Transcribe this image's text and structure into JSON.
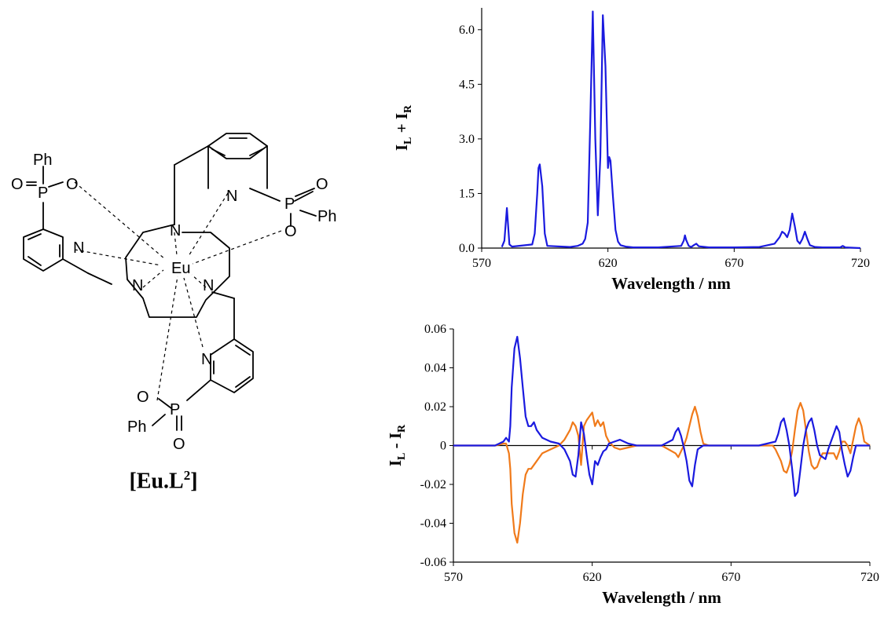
{
  "structure": {
    "atoms": {
      "metal": "Eu",
      "nitrogen": "N",
      "phosphorus": "P",
      "oxygen": "O",
      "phenyl": "Ph"
    },
    "caption_main": "[Eu.L",
    "caption_sup": "2",
    "caption_end": "]"
  },
  "chart_data": [
    {
      "type": "line",
      "title": "",
      "xlabel": "Wavelength / nm",
      "ylabel_main": "I",
      "ylabel_sub1": "L",
      "ylabel_mid": " + I",
      "ylabel_sub2": "R",
      "xlim": [
        570,
        720
      ],
      "ylim": [
        0,
        6.6
      ],
      "xticks": [
        570,
        620,
        670,
        720
      ],
      "yticks": [
        0.0,
        1.5,
        3.0,
        4.5,
        6.0
      ],
      "ytick_labels": [
        "0.0",
        "1.5",
        "3.0",
        "4.5",
        "6.0"
      ],
      "series": [
        {
          "color": "#1a1adf",
          "x": [
            578,
            579,
            580,
            580.5,
            581,
            582,
            590,
            591,
            592,
            592.5,
            593,
            594,
            595,
            596,
            605,
            608,
            610,
            611,
            612,
            613,
            614,
            615,
            616,
            617,
            618,
            619,
            620,
            620.5,
            621,
            622,
            623,
            624,
            625,
            627,
            630,
            640,
            649,
            650,
            650.5,
            651,
            652,
            653,
            654,
            655,
            656,
            660,
            670,
            680,
            686,
            688,
            689,
            690,
            691,
            692,
            693,
            694,
            695,
            696,
            697,
            698,
            699,
            700,
            702,
            705,
            712,
            713,
            714,
            720
          ],
          "y": [
            0.03,
            0.2,
            1.1,
            0.6,
            0.1,
            0.04,
            0.1,
            0.4,
            1.5,
            2.2,
            2.3,
            1.7,
            0.4,
            0.06,
            0.03,
            0.06,
            0.12,
            0.25,
            0.7,
            3.5,
            6.5,
            3.0,
            0.9,
            2.5,
            6.4,
            5.0,
            2.2,
            2.5,
            2.4,
            1.4,
            0.5,
            0.18,
            0.08,
            0.04,
            0.02,
            0.02,
            0.06,
            0.2,
            0.35,
            0.22,
            0.06,
            0.03,
            0.08,
            0.12,
            0.05,
            0.02,
            0.02,
            0.03,
            0.12,
            0.3,
            0.45,
            0.4,
            0.3,
            0.5,
            0.95,
            0.6,
            0.2,
            0.12,
            0.25,
            0.45,
            0.25,
            0.08,
            0.03,
            0.02,
            0.02,
            0.06,
            0.02,
            0.0
          ]
        }
      ]
    },
    {
      "type": "line",
      "title": "",
      "xlabel": "Wavelength / nm",
      "ylabel_main": "I",
      "ylabel_sub1": "L",
      "ylabel_mid": " - I",
      "ylabel_sub2": "R",
      "xlim": [
        570,
        720
      ],
      "ylim": [
        -0.06,
        0.06
      ],
      "xticks": [
        570,
        620,
        670,
        720
      ],
      "yticks": [
        -0.06,
        -0.04,
        -0.02,
        0,
        0.02,
        0.04,
        0.06
      ],
      "ytick_labels": [
        "-0.06",
        "-0.04",
        "-0.02",
        "0",
        "0.02",
        "0.04",
        "0.06"
      ],
      "series": [
        {
          "color": "#f07a1a",
          "x": [
            570,
            585,
            588,
            589,
            590,
            590.5,
            591,
            592,
            593,
            594,
            595,
            596,
            597,
            598,
            600,
            602,
            605,
            608,
            610,
            612,
            613,
            614,
            615,
            616,
            617,
            618,
            619,
            620,
            621,
            622,
            623,
            624,
            625,
            626,
            628,
            630,
            633,
            636,
            640,
            645,
            650,
            651,
            652,
            653,
            654,
            655,
            656,
            657,
            658,
            659,
            660,
            662,
            665,
            670,
            680,
            685,
            686,
            688,
            689,
            690,
            691,
            692,
            693,
            694,
            695,
            696,
            697,
            698,
            699,
            700,
            701,
            702,
            703,
            705,
            707,
            708,
            709,
            710,
            711,
            712,
            713,
            714,
            715,
            716,
            717,
            718,
            720
          ],
          "y": [
            0,
            0,
            0.001,
            0.001,
            -0.004,
            -0.012,
            -0.03,
            -0.045,
            -0.05,
            -0.04,
            -0.025,
            -0.015,
            -0.012,
            -0.012,
            -0.008,
            -0.004,
            -0.002,
            0,
            0.003,
            0.008,
            0.012,
            0.01,
            0.005,
            -0.01,
            0.01,
            0.013,
            0.015,
            0.017,
            0.01,
            0.013,
            0.01,
            0.012,
            0.005,
            0.002,
            -0.001,
            -0.002,
            -0.001,
            0,
            0,
            0,
            -0.004,
            -0.006,
            -0.003,
            0.0,
            0.004,
            0.01,
            0.016,
            0.02,
            0.015,
            0.007,
            0.001,
            0,
            0,
            0,
            0,
            0,
            -0.002,
            -0.008,
            -0.013,
            -0.014,
            -0.01,
            -0.003,
            0.008,
            0.018,
            0.022,
            0.018,
            0.008,
            -0.003,
            -0.01,
            -0.012,
            -0.011,
            -0.007,
            -0.004,
            -0.004,
            -0.004,
            -0.007,
            -0.003,
            0.002,
            0.002,
            0.0,
            -0.004,
            0.003,
            0.01,
            0.014,
            0.01,
            0.002,
            0
          ]
        },
        {
          "color": "#1a1adf",
          "x": [
            570,
            585,
            588,
            589,
            590,
            590.5,
            591,
            592,
            593,
            594,
            595,
            596,
            597,
            598,
            599,
            600,
            602,
            605,
            608,
            610,
            612,
            613,
            614,
            615,
            616,
            617,
            618,
            619,
            620,
            621,
            622,
            623,
            624,
            625,
            626,
            628,
            630,
            633,
            636,
            640,
            645,
            649,
            650,
            651,
            652,
            653,
            654,
            655,
            656,
            657,
            658,
            660,
            665,
            670,
            680,
            686,
            687,
            688,
            689,
            690,
            691,
            692,
            693,
            694,
            695,
            696,
            697,
            698,
            699,
            700,
            701,
            702,
            704,
            705,
            706,
            707,
            708,
            709,
            710,
            711,
            712,
            713,
            714,
            715,
            717,
            720
          ],
          "y": [
            0,
            0,
            0.002,
            0.004,
            0.002,
            0.01,
            0.03,
            0.05,
            0.056,
            0.045,
            0.03,
            0.015,
            0.01,
            0.01,
            0.012,
            0.008,
            0.004,
            0.002,
            0.001,
            -0.002,
            -0.008,
            -0.015,
            -0.016,
            -0.005,
            0.012,
            0.006,
            -0.005,
            -0.015,
            -0.02,
            -0.008,
            -0.01,
            -0.006,
            -0.003,
            -0.002,
            0.001,
            0.002,
            0.003,
            0.001,
            0,
            0,
            0,
            0.003,
            0.007,
            0.009,
            0.005,
            -0.001,
            -0.008,
            -0.018,
            -0.021,
            -0.01,
            -0.002,
            0,
            0,
            0,
            0,
            0.002,
            0.006,
            0.012,
            0.014,
            0.008,
            0.0,
            -0.012,
            -0.026,
            -0.024,
            -0.012,
            0.0,
            0.008,
            0.012,
            0.014,
            0.008,
            0.0,
            -0.005,
            -0.007,
            -0.002,
            0.002,
            0.006,
            0.01,
            0.007,
            -0.003,
            -0.01,
            -0.016,
            -0.013,
            -0.006,
            0.0,
            0,
            0
          ]
        }
      ]
    }
  ]
}
